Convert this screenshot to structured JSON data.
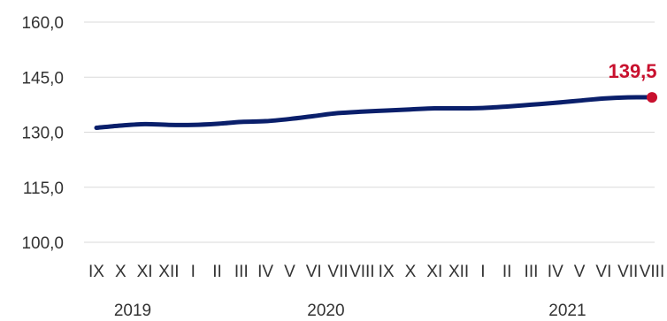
{
  "chart_data": {
    "type": "line",
    "title": "",
    "xlabel": "",
    "ylabel": "",
    "ylim": [
      100,
      160
    ],
    "yticks": [
      "160,0",
      "145,0",
      "130,0",
      "115,0",
      "100,0"
    ],
    "ytick_values": [
      160,
      145,
      130,
      115,
      100
    ],
    "grid": true,
    "categories": [
      "IX",
      "X",
      "XI",
      "XII",
      "I",
      "II",
      "III",
      "IV",
      "V",
      "VI",
      "VII",
      "VIII",
      "IX",
      "X",
      "XI",
      "XII",
      "I",
      "II",
      "III",
      "IV",
      "V",
      "VI",
      "VII",
      "VIII"
    ],
    "years": [
      {
        "label": "2019",
        "start_index": 0,
        "end_index": 3
      },
      {
        "label": "2020",
        "start_index": 4,
        "end_index": 15
      },
      {
        "label": "2021",
        "start_index": 16,
        "end_index": 23
      }
    ],
    "series": [
      {
        "values": [
          131.2,
          131.8,
          132.2,
          132.0,
          132.0,
          132.3,
          132.8,
          133.0,
          133.6,
          134.4,
          135.2,
          135.6,
          135.9,
          136.2,
          136.5,
          136.5,
          136.6,
          137.0,
          137.5,
          138.0,
          138.6,
          139.2,
          139.5,
          139.5
        ],
        "color": "#0a1f6b"
      }
    ],
    "highlight": {
      "index": 23,
      "label": "139,5",
      "color": "#c8102e"
    }
  }
}
